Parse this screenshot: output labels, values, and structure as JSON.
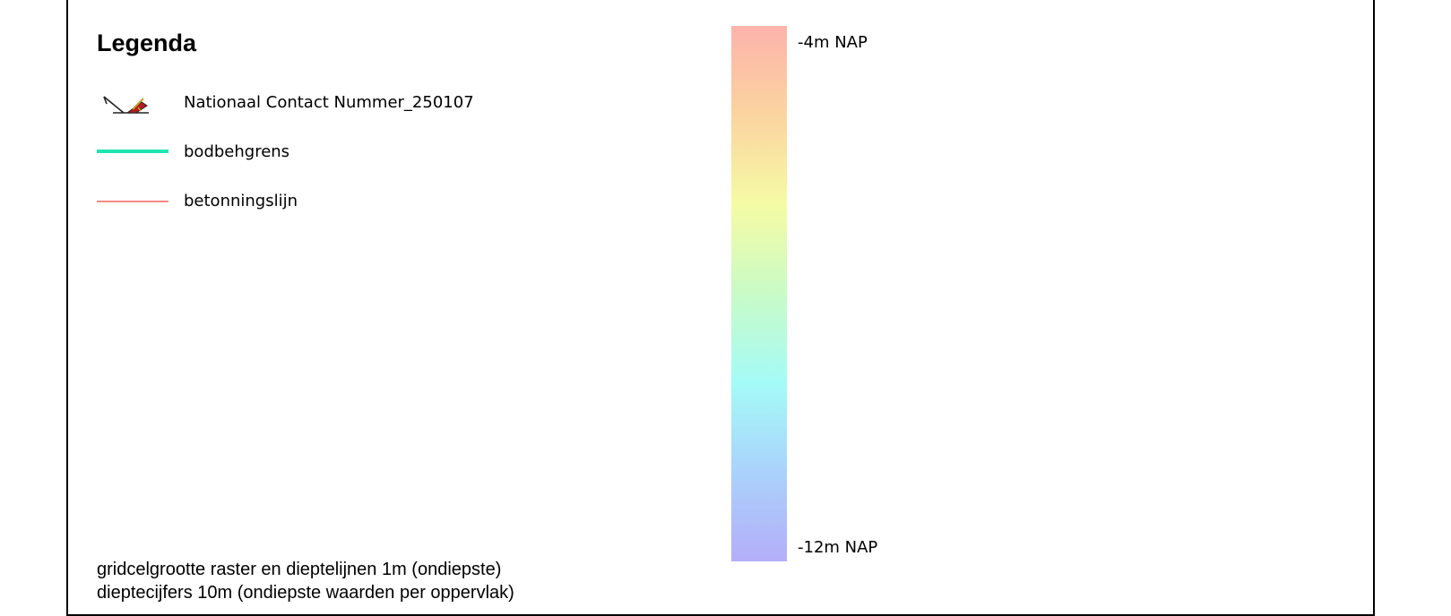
{
  "legend": {
    "title": "Legenda",
    "items": [
      {
        "label": "Nationaal Contact Nummer_250107",
        "icon": "shipwreck-icon"
      },
      {
        "label": "bodbehgrens",
        "color": "#1fe6b0"
      },
      {
        "label": "betonningslijn",
        "color": "#f58a8a"
      }
    ]
  },
  "color_ramp": {
    "top_label": "-4m NAP",
    "bottom_label": "-12m NAP",
    "colors": [
      "#fcb3ab",
      "#fbd4a0",
      "#f5fba4",
      "#c9fbc7",
      "#a4fbf7",
      "#aad2fb",
      "#b4aef9"
    ]
  },
  "notes": {
    "line1": "gridcelgrootte raster en dieptelijnen 1m (ondiepste)",
    "line2": "dieptecijfers 10m (ondiepste waarden per oppervlak)"
  }
}
